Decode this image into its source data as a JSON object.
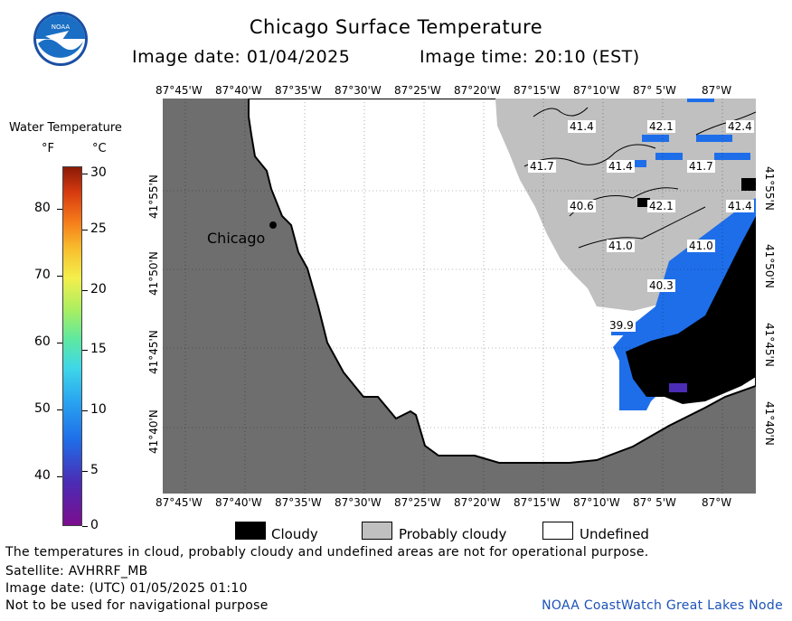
{
  "header": {
    "title": "Chicago Surface Temperature",
    "image_date": "Image date: 01/04/2025",
    "image_time": "Image time: 20:10 (EST)",
    "logo_text": "NOAA"
  },
  "legend": {
    "title": "Water Temperature",
    "unit_f": "°F",
    "unit_c": "°C",
    "fahrenheit_ticks": [
      "80",
      "70",
      "60",
      "50",
      "40"
    ],
    "celsius_ticks": [
      "30",
      "25",
      "20",
      "15",
      "10",
      "5",
      "0"
    ],
    "colors": {
      "low": "#7b0d8e",
      "mid": "#3fd7e8",
      "high": "#8a1a06"
    }
  },
  "map": {
    "longitude_labels": [
      "87°45'W",
      "87°40'W",
      "87°35'W",
      "87°30'W",
      "87°25'W",
      "87°20'W",
      "87°15'W",
      "87°10'W",
      "87° 5'W",
      "87°W"
    ],
    "latitude_labels": [
      "41°55'N",
      "41°50'N",
      "41°45'N",
      "41°40'N"
    ],
    "city_label": "Chicago",
    "temperature_labels": [
      "41.4",
      "42.1",
      "42.4",
      "41.7",
      "41.4",
      "41.7",
      "40.6",
      "42.1",
      "41.4",
      "41.0",
      "41.0",
      "40.3",
      "39.9"
    ],
    "colors": {
      "land": "#6e6e6e",
      "cloudy": "#000000",
      "probably_cloudy": "#c0c0c0",
      "undefined": "#ffffff",
      "water_blue": "#1e6eea"
    }
  },
  "key": {
    "cloudy": "Cloudy",
    "probably_cloudy": "Probably cloudy",
    "undefined": "Undefined"
  },
  "footer": {
    "disclaimer": "The temperatures in cloud, probably cloudy and undefined areas are not for operational purpose.",
    "satellite": "Satellite: AVHRRF_MB",
    "utc_date": "Image date: (UTC) 01/05/2025  01:10",
    "navigation": "Not to be used for navigational purpose",
    "node": "NOAA CoastWatch Great Lakes Node"
  }
}
